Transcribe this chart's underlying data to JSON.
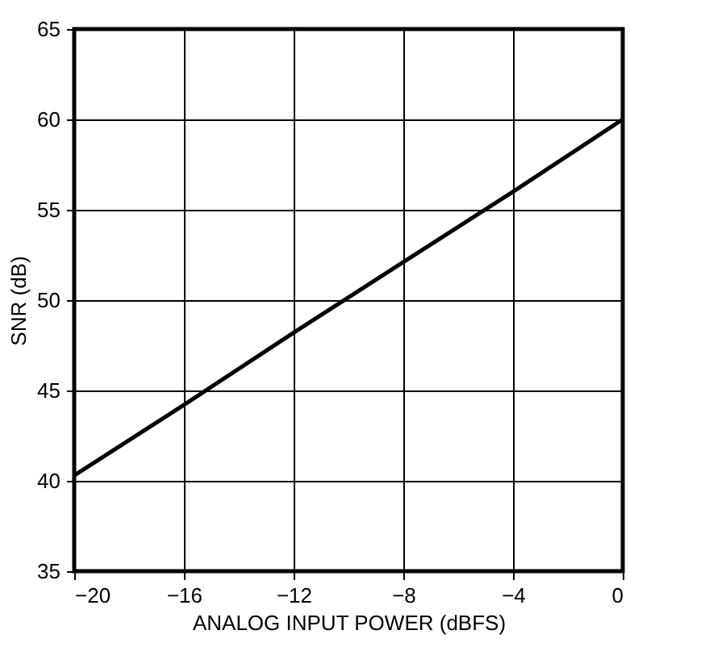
{
  "chart_data": {
    "type": "line",
    "xlabel": "ANALOG INPUT POWER (dBFS)",
    "ylabel": "SNR (dB)",
    "x": [
      -20,
      -16,
      -12,
      -8,
      -4,
      0
    ],
    "series": [
      {
        "color": "#000000",
        "values": [
          40.3,
          44.2,
          48.2,
          52.1,
          56.0,
          60.0
        ]
      }
    ],
    "xlim": [
      -20,
      0
    ],
    "xticks": [
      -20,
      -16,
      -12,
      -8,
      -4,
      0
    ],
    "ylim": [
      35,
      65
    ],
    "yticks": [
      35,
      40,
      45,
      50,
      55,
      60,
      65
    ],
    "grid": true,
    "marker": "none",
    "line_style": "solid"
  }
}
